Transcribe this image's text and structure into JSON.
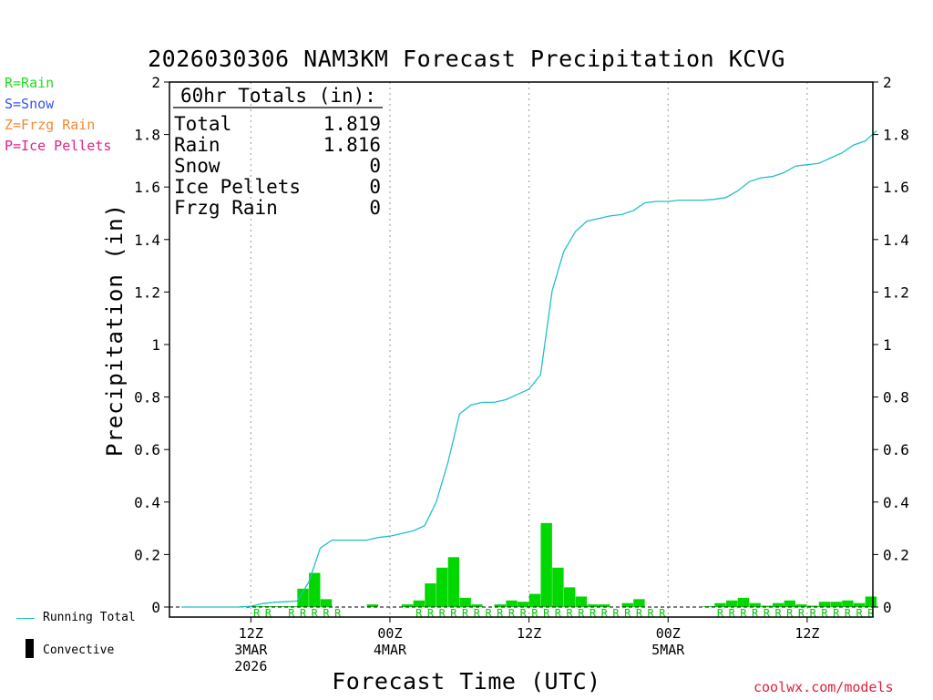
{
  "chart_data": {
    "type": "bar",
    "title": "2026030306 NAM3KM Forecast Precipitation KCVG",
    "xlabel": "Forecast Time (UTC)",
    "ylabel": "Precipitation (in)",
    "ylim": [
      0,
      2
    ],
    "yticks": [
      "0",
      "0.2",
      "0.4",
      "0.6",
      "0.8",
      "1",
      "1.2",
      "1.4",
      "1.6",
      "1.8",
      "2"
    ],
    "yticks_values": [
      0,
      0.2,
      0.4,
      0.6,
      0.8,
      1.0,
      1.2,
      1.4,
      1.6,
      1.8,
      2.0
    ],
    "x_range_hours": [
      0,
      60
    ],
    "x_ticks": [
      {
        "hour": 6,
        "line1": "12Z",
        "line2": "3MAR",
        "line3": "2026"
      },
      {
        "hour": 18,
        "line1": "00Z",
        "line2": "4MAR",
        "line3": ""
      },
      {
        "hour": 30,
        "line1": "12Z",
        "line2": "",
        "line3": ""
      },
      {
        "hour": 42,
        "line1": "00Z",
        "line2": "5MAR",
        "line3": ""
      },
      {
        "hour": 54,
        "line1": "12Z",
        "line2": "",
        "line3": ""
      }
    ],
    "hourly_precip": [
      0,
      0,
      0,
      0,
      0,
      0,
      0.003,
      0.003,
      0.003,
      0.003,
      0.003,
      0.07,
      0.13,
      0.03,
      0,
      0,
      0,
      0.01,
      0,
      0,
      0.01,
      0.025,
      0.09,
      0.15,
      0.19,
      0.035,
      0.01,
      0,
      0.01,
      0.025,
      0.02,
      0.05,
      0.32,
      0.15,
      0.075,
      0.04,
      0.01,
      0.01,
      0,
      0.015,
      0.03,
      0,
      0,
      0,
      0,
      0,
      0.003,
      0.015,
      0.025,
      0.035,
      0.015,
      0.005,
      0.015,
      0.025,
      0.01,
      0.005,
      0.02,
      0.02,
      0.025,
      0.015,
      0.04
    ],
    "running_total": [
      0,
      0,
      0,
      0,
      0,
      0,
      0.003,
      0.013,
      0.018,
      0.02,
      0.023,
      0.095,
      0.225,
      0.255,
      0.255,
      0.255,
      0.255,
      0.265,
      0.27,
      0.28,
      0.29,
      0.31,
      0.4,
      0.55,
      0.735,
      0.77,
      0.78,
      0.78,
      0.79,
      0.81,
      0.83,
      0.885,
      1.205,
      1.355,
      1.43,
      1.47,
      1.48,
      1.49,
      1.495,
      1.51,
      1.54,
      1.545,
      1.545,
      1.55,
      1.55,
      1.55,
      1.553,
      1.56,
      1.585,
      1.62,
      1.635,
      1.64,
      1.655,
      1.68,
      1.685,
      1.69,
      1.71,
      1.73,
      1.76,
      1.775,
      1.815
    ],
    "rain_marker_hours": [
      7,
      8,
      10,
      11,
      12,
      13,
      14,
      26,
      27,
      28,
      29,
      30,
      31,
      32,
      33,
      34,
      35,
      36,
      37,
      38,
      39,
      40,
      41,
      42,
      47,
      48,
      49,
      50,
      51,
      52,
      53,
      54,
      55,
      56,
      57,
      58,
      59,
      60
    ],
    "rain_marker_hours_pre": [
      21,
      22,
      23,
      24,
      25
    ],
    "rain_marker_char": "R",
    "series": [
      {
        "name": "Hourly Precipitation",
        "kind": "bar",
        "color": "#00d800"
      },
      {
        "name": "Running Total",
        "kind": "line",
        "color": "#20c0c8"
      }
    ]
  },
  "totals_box": {
    "header": "60hr Totals (in):",
    "rows": [
      {
        "label": "Total",
        "value": "1.819"
      },
      {
        "label": "Rain",
        "value": "1.816"
      },
      {
        "label": "Snow",
        "value": "0"
      },
      {
        "label": "Ice Pellets",
        "value": "0"
      },
      {
        "label": "Frzg Rain",
        "value": "0"
      }
    ]
  },
  "type_legend": {
    "rain": {
      "text": "R=Rain",
      "color": "#22dd22"
    },
    "snow": {
      "text": "S=Snow",
      "color": "#3355ee"
    },
    "frzg": {
      "text": "Z=Frzg Rain",
      "color": "#f08a30"
    },
    "ice": {
      "text": "P=Ice Pellets",
      "color": "#e0208a"
    }
  },
  "series_legend": {
    "running_total": "Running Total",
    "convective": "Convective"
  },
  "credit": "coolwx.com/models"
}
